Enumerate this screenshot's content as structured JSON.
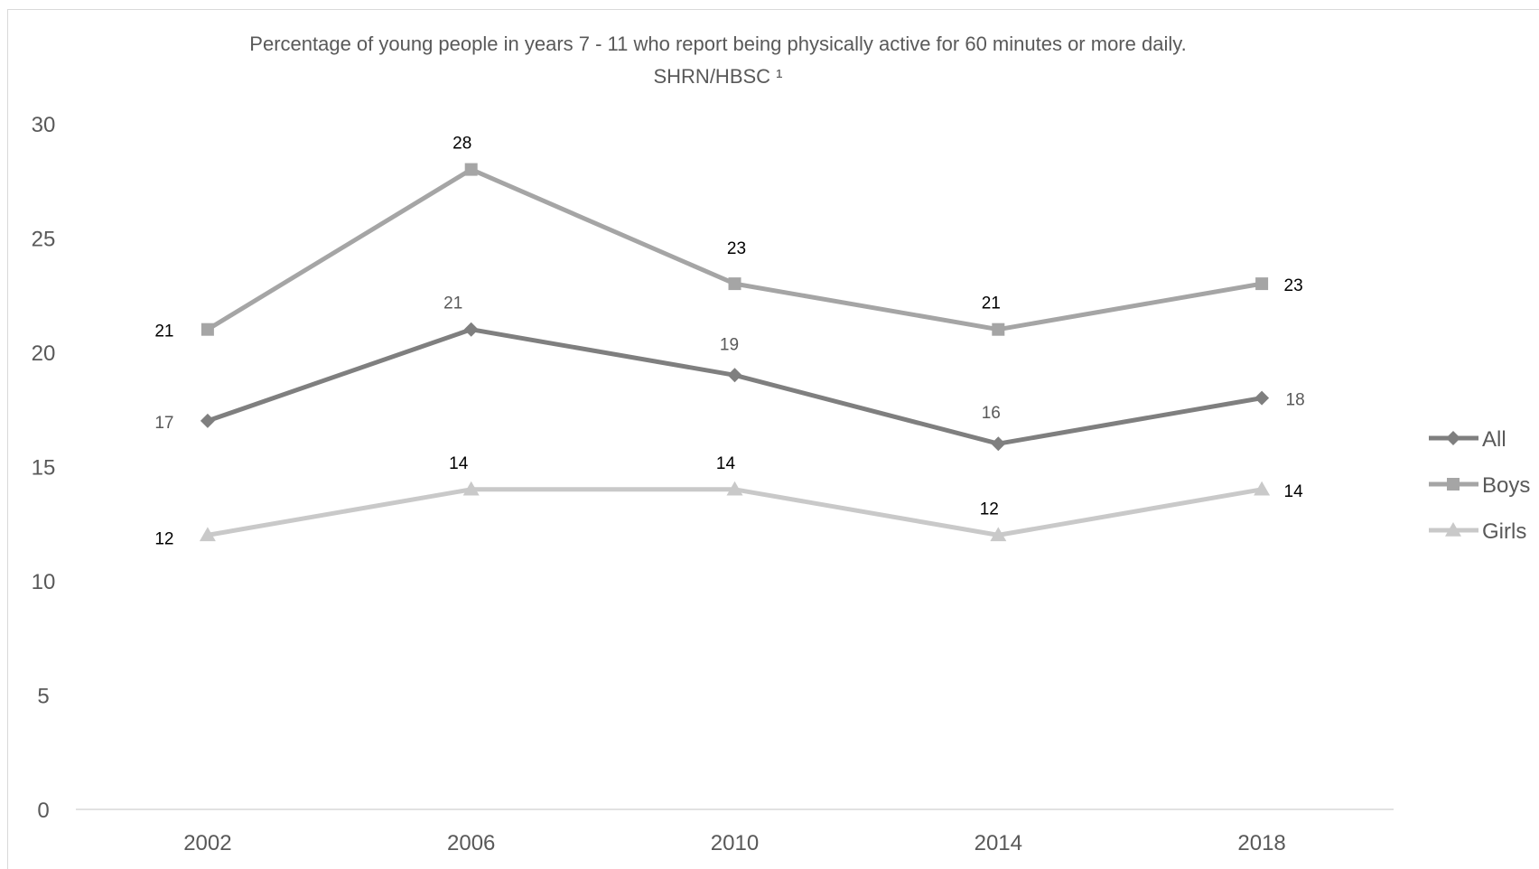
{
  "chart_data": {
    "type": "line",
    "title": "Percentage of young people in years 7 - 11 who report being physically active for 60 minutes or more daily.",
    "subtitle": "SHRN/HBSC ¹",
    "categories": [
      "2002",
      "2006",
      "2010",
      "2014",
      "2018"
    ],
    "ylim": [
      0,
      30
    ],
    "yticks": [
      0,
      5,
      10,
      15,
      20,
      25,
      30
    ],
    "grid": false,
    "legend_position": "right",
    "series": [
      {
        "name": "All",
        "values": [
          17,
          21,
          19,
          16,
          18
        ],
        "color": "#7f7f7f",
        "marker": "diamond",
        "label_color": "#595959"
      },
      {
        "name": "Boys",
        "values": [
          21,
          28,
          23,
          21,
          23
        ],
        "color": "#a5a5a5",
        "marker": "square",
        "label_color": "#000000"
      },
      {
        "name": "Girls",
        "values": [
          12,
          14,
          14,
          12,
          14
        ],
        "color": "#c9c9c9",
        "marker": "triangle",
        "label_color": "#000000"
      }
    ]
  }
}
